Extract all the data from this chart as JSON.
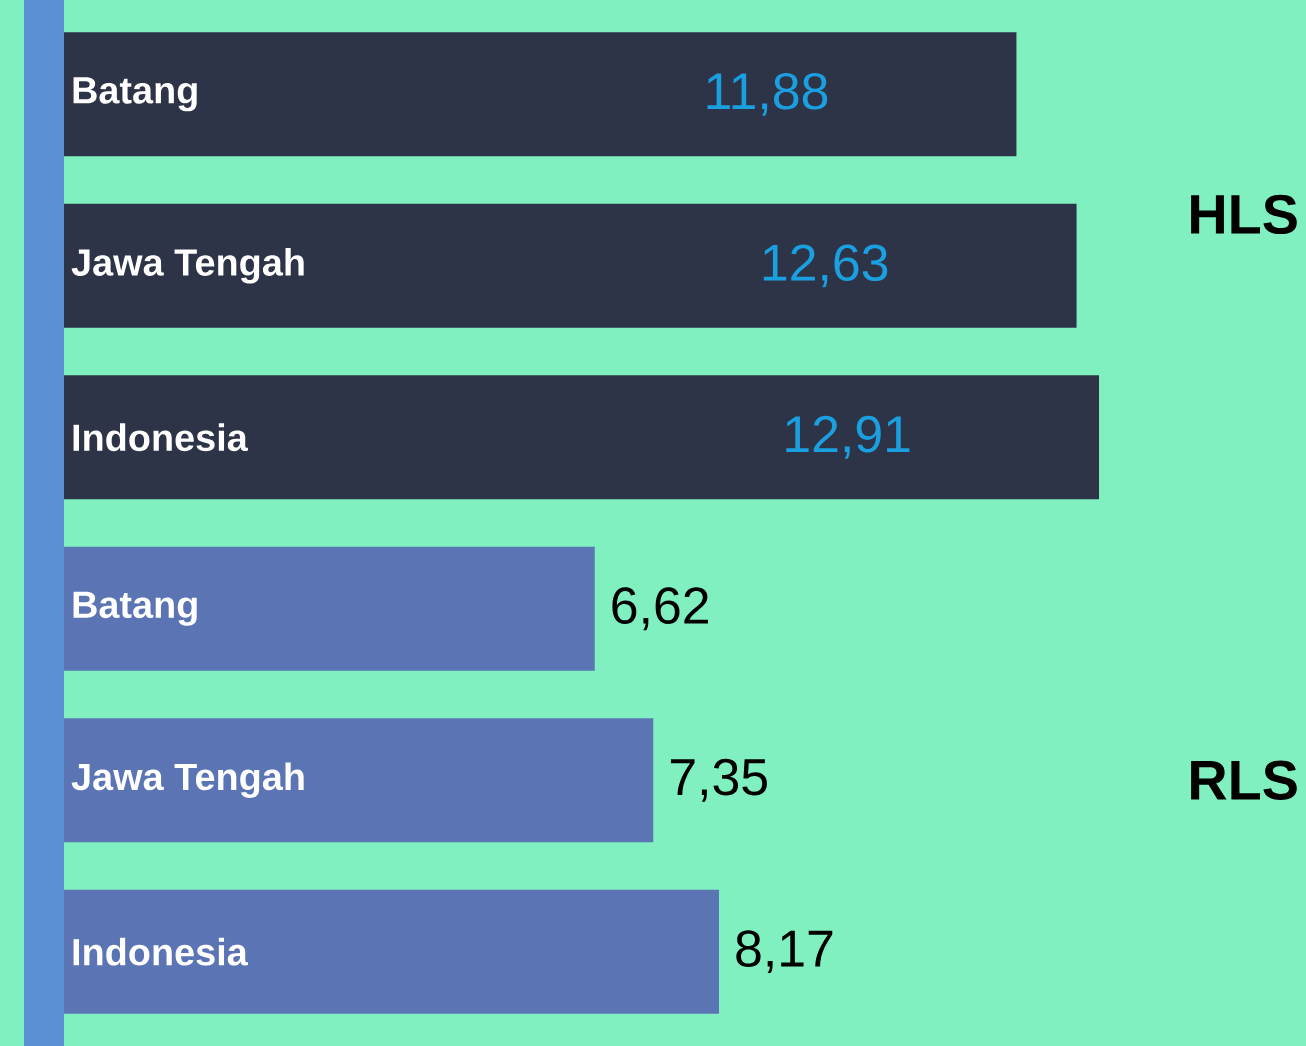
{
  "chart_data": {
    "type": "bar",
    "orientation": "horizontal",
    "categories": [
      "Batang",
      "Jawa Tengah",
      "Indonesia",
      "Batang",
      "Jawa Tengah",
      "Indonesia"
    ],
    "series": [
      {
        "name": "HLS",
        "color": "#2e3447",
        "values": [
          11.88,
          12.63,
          12.91,
          null,
          null,
          null
        ],
        "value_labels": [
          "11,88",
          "12,63",
          "12,91",
          null,
          null,
          null
        ]
      },
      {
        "name": "RLS",
        "color": "#5b74b4",
        "values": [
          null,
          null,
          null,
          6.62,
          7.35,
          8.17
        ],
        "value_labels": [
          null,
          null,
          null,
          "6,62",
          "7,35",
          "8,17"
        ]
      }
    ],
    "tick_labels": "y"
  }
}
